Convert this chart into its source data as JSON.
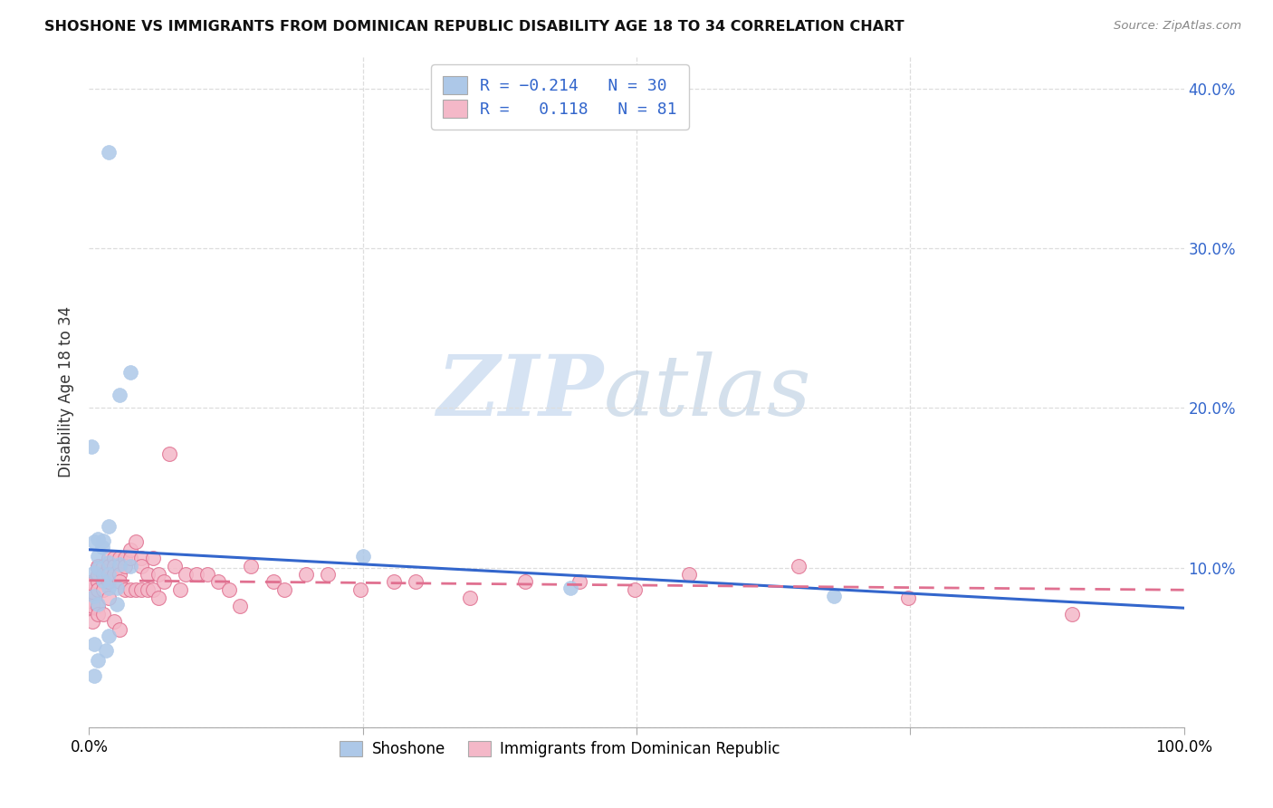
{
  "title": "SHOSHONE VS IMMIGRANTS FROM DOMINICAN REPUBLIC DISABILITY AGE 18 TO 34 CORRELATION CHART",
  "source": "Source: ZipAtlas.com",
  "ylabel": "Disability Age 18 to 34",
  "yticks": [
    0.0,
    0.1,
    0.2,
    0.3,
    0.4
  ],
  "ytick_labels_left": [
    "",
    "",
    "",
    "",
    ""
  ],
  "ytick_labels_right": [
    "",
    "10.0%",
    "20.0%",
    "30.0%",
    "40.0%"
  ],
  "xlim": [
    0.0,
    1.0
  ],
  "ylim": [
    0.0,
    0.42
  ],
  "blue_R": -0.214,
  "blue_N": 30,
  "pink_R": 0.118,
  "pink_N": 81,
  "blue_color": "#adc8e8",
  "blue_line_color": "#3366cc",
  "pink_color": "#f4b8c8",
  "pink_line_color": "#e07090",
  "watermark_zip": "ZIP",
  "watermark_atlas": "atlas",
  "legend_label_blue": "Shoshone",
  "legend_label_pink": "Immigrants from Dominican Republic",
  "blue_scatter_x": [
    0.018,
    0.038,
    0.028,
    0.002,
    0.018,
    0.008,
    0.005,
    0.012,
    0.008,
    0.018,
    0.028,
    0.038,
    0.008,
    0.005,
    0.018,
    0.013,
    0.025,
    0.25,
    0.44,
    0.68,
    0.005,
    0.008,
    0.018,
    0.005,
    0.008,
    0.013,
    0.018,
    0.025,
    0.005,
    0.015
  ],
  "blue_scatter_y": [
    0.36,
    0.222,
    0.208,
    0.176,
    0.126,
    0.118,
    0.116,
    0.113,
    0.107,
    0.103,
    0.102,
    0.101,
    0.1,
    0.097,
    0.096,
    0.092,
    0.087,
    0.107,
    0.087,
    0.082,
    0.082,
    0.077,
    0.057,
    0.052,
    0.042,
    0.117,
    0.087,
    0.077,
    0.032,
    0.048
  ],
  "pink_scatter_x": [
    0.003,
    0.003,
    0.003,
    0.003,
    0.003,
    0.003,
    0.003,
    0.003,
    0.003,
    0.003,
    0.003,
    0.003,
    0.008,
    0.008,
    0.008,
    0.008,
    0.008,
    0.008,
    0.008,
    0.013,
    0.013,
    0.013,
    0.013,
    0.013,
    0.018,
    0.018,
    0.018,
    0.018,
    0.018,
    0.023,
    0.023,
    0.023,
    0.023,
    0.028,
    0.028,
    0.028,
    0.028,
    0.028,
    0.033,
    0.033,
    0.033,
    0.038,
    0.038,
    0.038,
    0.043,
    0.043,
    0.048,
    0.048,
    0.048,
    0.053,
    0.053,
    0.058,
    0.058,
    0.063,
    0.063,
    0.068,
    0.073,
    0.078,
    0.083,
    0.088,
    0.098,
    0.108,
    0.118,
    0.128,
    0.138,
    0.148,
    0.168,
    0.178,
    0.198,
    0.218,
    0.248,
    0.278,
    0.298,
    0.348,
    0.398,
    0.448,
    0.498,
    0.548,
    0.648,
    0.748,
    0.898
  ],
  "pink_scatter_y": [
    0.078,
    0.076,
    0.075,
    0.081,
    0.08,
    0.079,
    0.086,
    0.085,
    0.091,
    0.09,
    0.076,
    0.066,
    0.091,
    0.096,
    0.101,
    0.1,
    0.086,
    0.076,
    0.071,
    0.101,
    0.096,
    0.091,
    0.086,
    0.071,
    0.106,
    0.101,
    0.096,
    0.091,
    0.081,
    0.106,
    0.101,
    0.096,
    0.066,
    0.106,
    0.101,
    0.096,
    0.091,
    0.061,
    0.106,
    0.101,
    0.086,
    0.111,
    0.106,
    0.086,
    0.116,
    0.086,
    0.106,
    0.101,
    0.086,
    0.096,
    0.086,
    0.106,
    0.086,
    0.096,
    0.081,
    0.091,
    0.171,
    0.101,
    0.086,
    0.096,
    0.096,
    0.096,
    0.091,
    0.086,
    0.076,
    0.101,
    0.091,
    0.086,
    0.096,
    0.096,
    0.086,
    0.091,
    0.091,
    0.081,
    0.091,
    0.091,
    0.086,
    0.096,
    0.101,
    0.081,
    0.071
  ],
  "background_color": "#ffffff",
  "grid_color": "#dddddd",
  "axis_label_color": "#3366cc"
}
